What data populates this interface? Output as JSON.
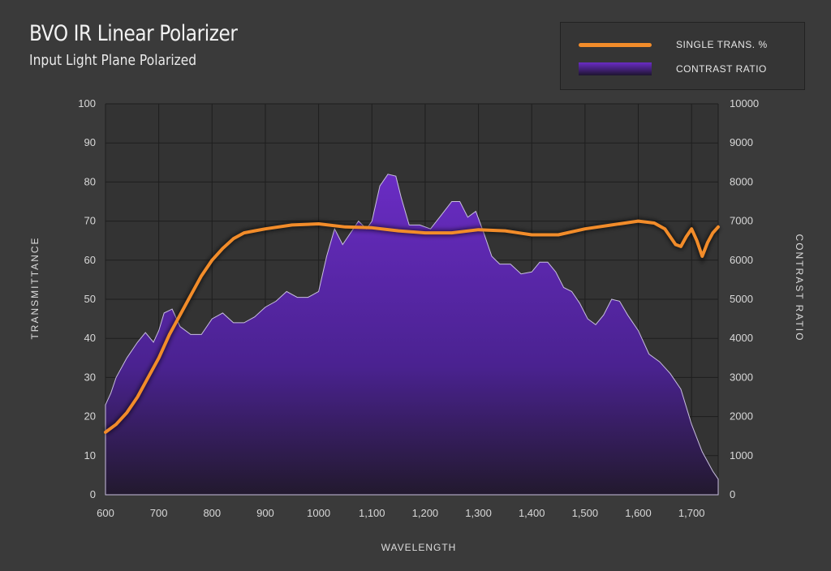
{
  "header": {
    "title": "BVO IR Linear Polarizer",
    "subtitle": "Input Light Plane Polarized"
  },
  "legend": {
    "placement": "top-right",
    "items": [
      {
        "label": "SINGLE TRANS. %",
        "color": "#f28c2a",
        "kind": "line"
      },
      {
        "label": "CONTRAST RATIO",
        "color": "#6a2cc4",
        "kind": "area"
      }
    ]
  },
  "chart_data": {
    "type": "line",
    "title": "BVO IR Linear Polarizer",
    "subtitle": "Input Light Plane Polarized",
    "xlabel": "WAVELENGTH",
    "ylabel": "TRANSMITTANCE",
    "y2label": "CONTRAST RATIO",
    "xlim": [
      600,
      1750
    ],
    "ylim": [
      0,
      100
    ],
    "y2lim": [
      0,
      10000
    ],
    "grid": true,
    "x_ticks": [
      "600",
      "700",
      "800",
      "900",
      "1000",
      "1,100",
      "1,200",
      "1,300",
      "1,400",
      "1,500",
      "1,600",
      "1,700"
    ],
    "x_tick_values": [
      600,
      700,
      800,
      900,
      1000,
      1100,
      1200,
      1300,
      1400,
      1500,
      1600,
      1700
    ],
    "y_ticks": [
      "0",
      "10",
      "20",
      "30",
      "40",
      "50",
      "60",
      "70",
      "80",
      "90",
      "100"
    ],
    "y2_ticks": [
      "0",
      "1000",
      "2000",
      "3000",
      "4000",
      "5000",
      "6000",
      "7000",
      "8000",
      "9000",
      "10000"
    ],
    "series": [
      {
        "name": "SINGLE TRANS. %",
        "type": "line",
        "axis": "left",
        "color": "#f28c2a",
        "x": [
          600,
          620,
          640,
          660,
          680,
          700,
          720,
          740,
          760,
          780,
          800,
          820,
          840,
          860,
          880,
          900,
          950,
          1000,
          1050,
          1100,
          1150,
          1200,
          1250,
          1300,
          1350,
          1400,
          1450,
          1500,
          1550,
          1600,
          1630,
          1650,
          1660,
          1670,
          1680,
          1690,
          1700,
          1710,
          1720,
          1730,
          1740,
          1750
        ],
        "y": [
          16,
          18,
          21,
          25,
          30,
          35,
          41,
          46,
          51,
          56,
          60,
          63,
          65.5,
          67,
          67.5,
          68,
          69,
          69.3,
          68.5,
          68.3,
          67.5,
          67,
          67,
          67.8,
          67.5,
          66.5,
          66.5,
          68,
          69,
          70,
          69.5,
          68,
          66,
          64,
          63.5,
          66,
          68,
          65,
          61,
          64.5,
          67,
          68.5
        ]
      },
      {
        "name": "CONTRAST RATIO",
        "type": "area",
        "axis": "right",
        "color": "#6a2cc4",
        "x": [
          600,
          610,
          620,
          640,
          660,
          675,
          690,
          700,
          710,
          725,
          740,
          760,
          780,
          800,
          820,
          840,
          860,
          880,
          900,
          920,
          940,
          960,
          980,
          1000,
          1015,
          1030,
          1045,
          1060,
          1075,
          1090,
          1100,
          1115,
          1130,
          1145,
          1155,
          1170,
          1190,
          1210,
          1230,
          1250,
          1265,
          1280,
          1295,
          1310,
          1325,
          1340,
          1360,
          1380,
          1400,
          1415,
          1430,
          1445,
          1460,
          1475,
          1490,
          1505,
          1520,
          1535,
          1550,
          1565,
          1580,
          1600,
          1620,
          1640,
          1660,
          1680,
          1700,
          1720,
          1740,
          1750
        ],
        "y": [
          2300,
          2600,
          3000,
          3500,
          3900,
          4150,
          3900,
          4200,
          4650,
          4750,
          4300,
          4100,
          4100,
          4500,
          4650,
          4400,
          4400,
          4550,
          4800,
          4950,
          5200,
          5050,
          5050,
          5200,
          6100,
          6800,
          6400,
          6700,
          7000,
          6800,
          7000,
          7900,
          8200,
          8150,
          7600,
          6900,
          6900,
          6800,
          7150,
          7500,
          7500,
          7100,
          7250,
          6700,
          6100,
          5900,
          5900,
          5650,
          5700,
          5950,
          5950,
          5700,
          5300,
          5200,
          4900,
          4500,
          4350,
          4600,
          5000,
          4950,
          4600,
          4200,
          3600,
          3400,
          3100,
          2700,
          1800,
          1100,
          600,
          400
        ]
      }
    ]
  }
}
